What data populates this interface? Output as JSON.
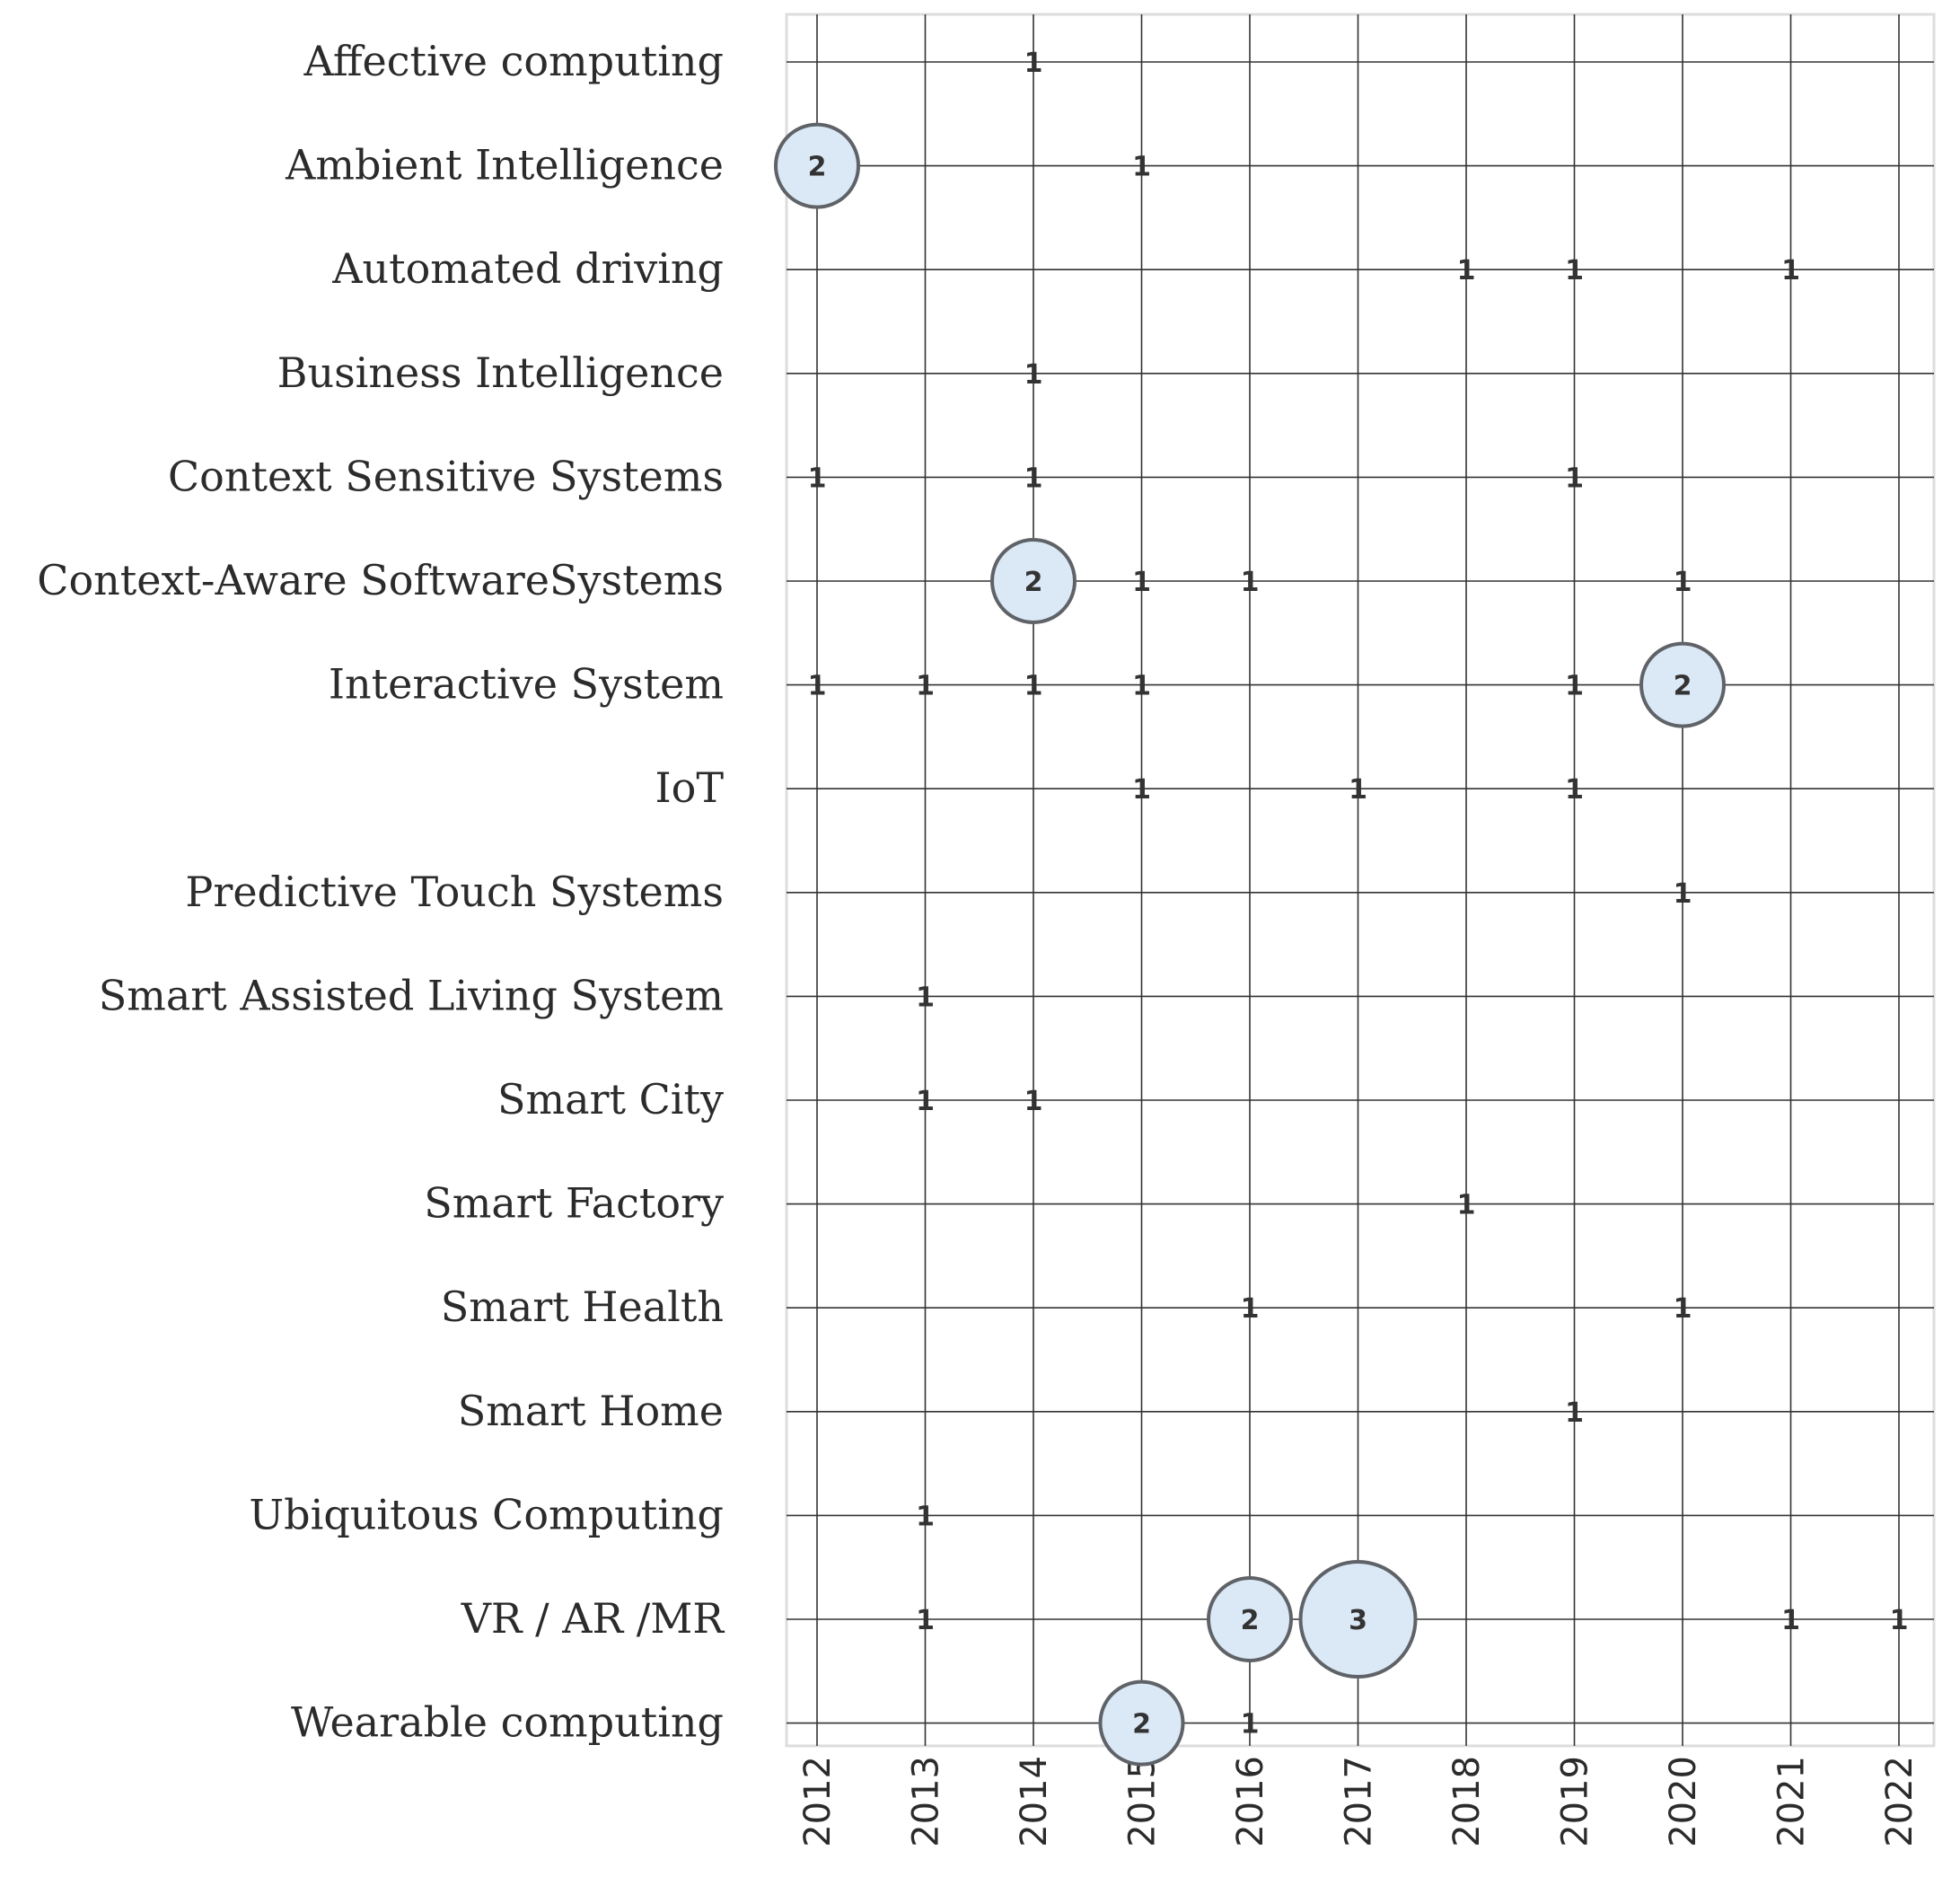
{
  "chart_data": {
    "type": "scatter",
    "subtype": "bubble-grid",
    "title": "",
    "xlabel": "",
    "ylabel": "",
    "x": [
      "2012",
      "2013",
      "2014",
      "2015",
      "2016",
      "2017",
      "2018",
      "2019",
      "2020",
      "2021",
      "2022"
    ],
    "categories": [
      "Affective computing",
      "Ambient Intelligence",
      "Automated driving",
      "Business Intelligence",
      "Context Sensitive Systems",
      "Context-Aware SoftwareSystems",
      "Interactive System",
      "IoT",
      "Predictive Touch Systems",
      "Smart Assisted Living System",
      "Smart City",
      "Smart Factory",
      "Smart Health",
      "Smart Home",
      "Ubiquitous Computing",
      "VR / AR /MR",
      "Wearable computing"
    ],
    "points": [
      {
        "category": "Affective computing",
        "x": "2014",
        "value": 1
      },
      {
        "category": "Ambient Intelligence",
        "x": "2012",
        "value": 2
      },
      {
        "category": "Ambient Intelligence",
        "x": "2015",
        "value": 1
      },
      {
        "category": "Automated driving",
        "x": "2018",
        "value": 1
      },
      {
        "category": "Automated driving",
        "x": "2019",
        "value": 1
      },
      {
        "category": "Automated driving",
        "x": "2021",
        "value": 1
      },
      {
        "category": "Business Intelligence",
        "x": "2014",
        "value": 1
      },
      {
        "category": "Context Sensitive Systems",
        "x": "2012",
        "value": 1
      },
      {
        "category": "Context Sensitive Systems",
        "x": "2014",
        "value": 1
      },
      {
        "category": "Context Sensitive Systems",
        "x": "2019",
        "value": 1
      },
      {
        "category": "Context-Aware SoftwareSystems",
        "x": "2014",
        "value": 2
      },
      {
        "category": "Context-Aware SoftwareSystems",
        "x": "2015",
        "value": 1
      },
      {
        "category": "Context-Aware SoftwareSystems",
        "x": "2016",
        "value": 1
      },
      {
        "category": "Context-Aware SoftwareSystems",
        "x": "2020",
        "value": 1
      },
      {
        "category": "Interactive System",
        "x": "2012",
        "value": 1
      },
      {
        "category": "Interactive System",
        "x": "2013",
        "value": 1
      },
      {
        "category": "Interactive System",
        "x": "2014",
        "value": 1
      },
      {
        "category": "Interactive System",
        "x": "2015",
        "value": 1
      },
      {
        "category": "Interactive System",
        "x": "2019",
        "value": 1
      },
      {
        "category": "Interactive System",
        "x": "2020",
        "value": 2
      },
      {
        "category": "IoT",
        "x": "2015",
        "value": 1
      },
      {
        "category": "IoT",
        "x": "2017",
        "value": 1
      },
      {
        "category": "IoT",
        "x": "2019",
        "value": 1
      },
      {
        "category": "Predictive Touch Systems",
        "x": "2020",
        "value": 1
      },
      {
        "category": "Smart Assisted Living System",
        "x": "2013",
        "value": 1
      },
      {
        "category": "Smart City",
        "x": "2013",
        "value": 1
      },
      {
        "category": "Smart City",
        "x": "2014",
        "value": 1
      },
      {
        "category": "Smart Factory",
        "x": "2018",
        "value": 1
      },
      {
        "category": "Smart Health",
        "x": "2016",
        "value": 1
      },
      {
        "category": "Smart Health",
        "x": "2020",
        "value": 1
      },
      {
        "category": "Smart Home",
        "x": "2019",
        "value": 1
      },
      {
        "category": "Ubiquitous Computing",
        "x": "2013",
        "value": 1
      },
      {
        "category": "VR / AR /MR",
        "x": "2013",
        "value": 1
      },
      {
        "category": "VR / AR /MR",
        "x": "2016",
        "value": 2
      },
      {
        "category": "VR / AR /MR",
        "x": "2017",
        "value": 3
      },
      {
        "category": "VR / AR /MR",
        "x": "2021",
        "value": 1
      },
      {
        "category": "VR / AR /MR",
        "x": "2022",
        "value": 1
      },
      {
        "category": "Wearable computing",
        "x": "2015",
        "value": 2
      },
      {
        "category": "Wearable computing",
        "x": "2016",
        "value": 1
      }
    ],
    "colors": {
      "bubble_fill": "#dbe8f5",
      "bubble_stroke": "#5f6368",
      "grid": "#333333",
      "frame": "#dddddd",
      "text": "#2b2b2b"
    },
    "grid": true,
    "legend": "none"
  }
}
